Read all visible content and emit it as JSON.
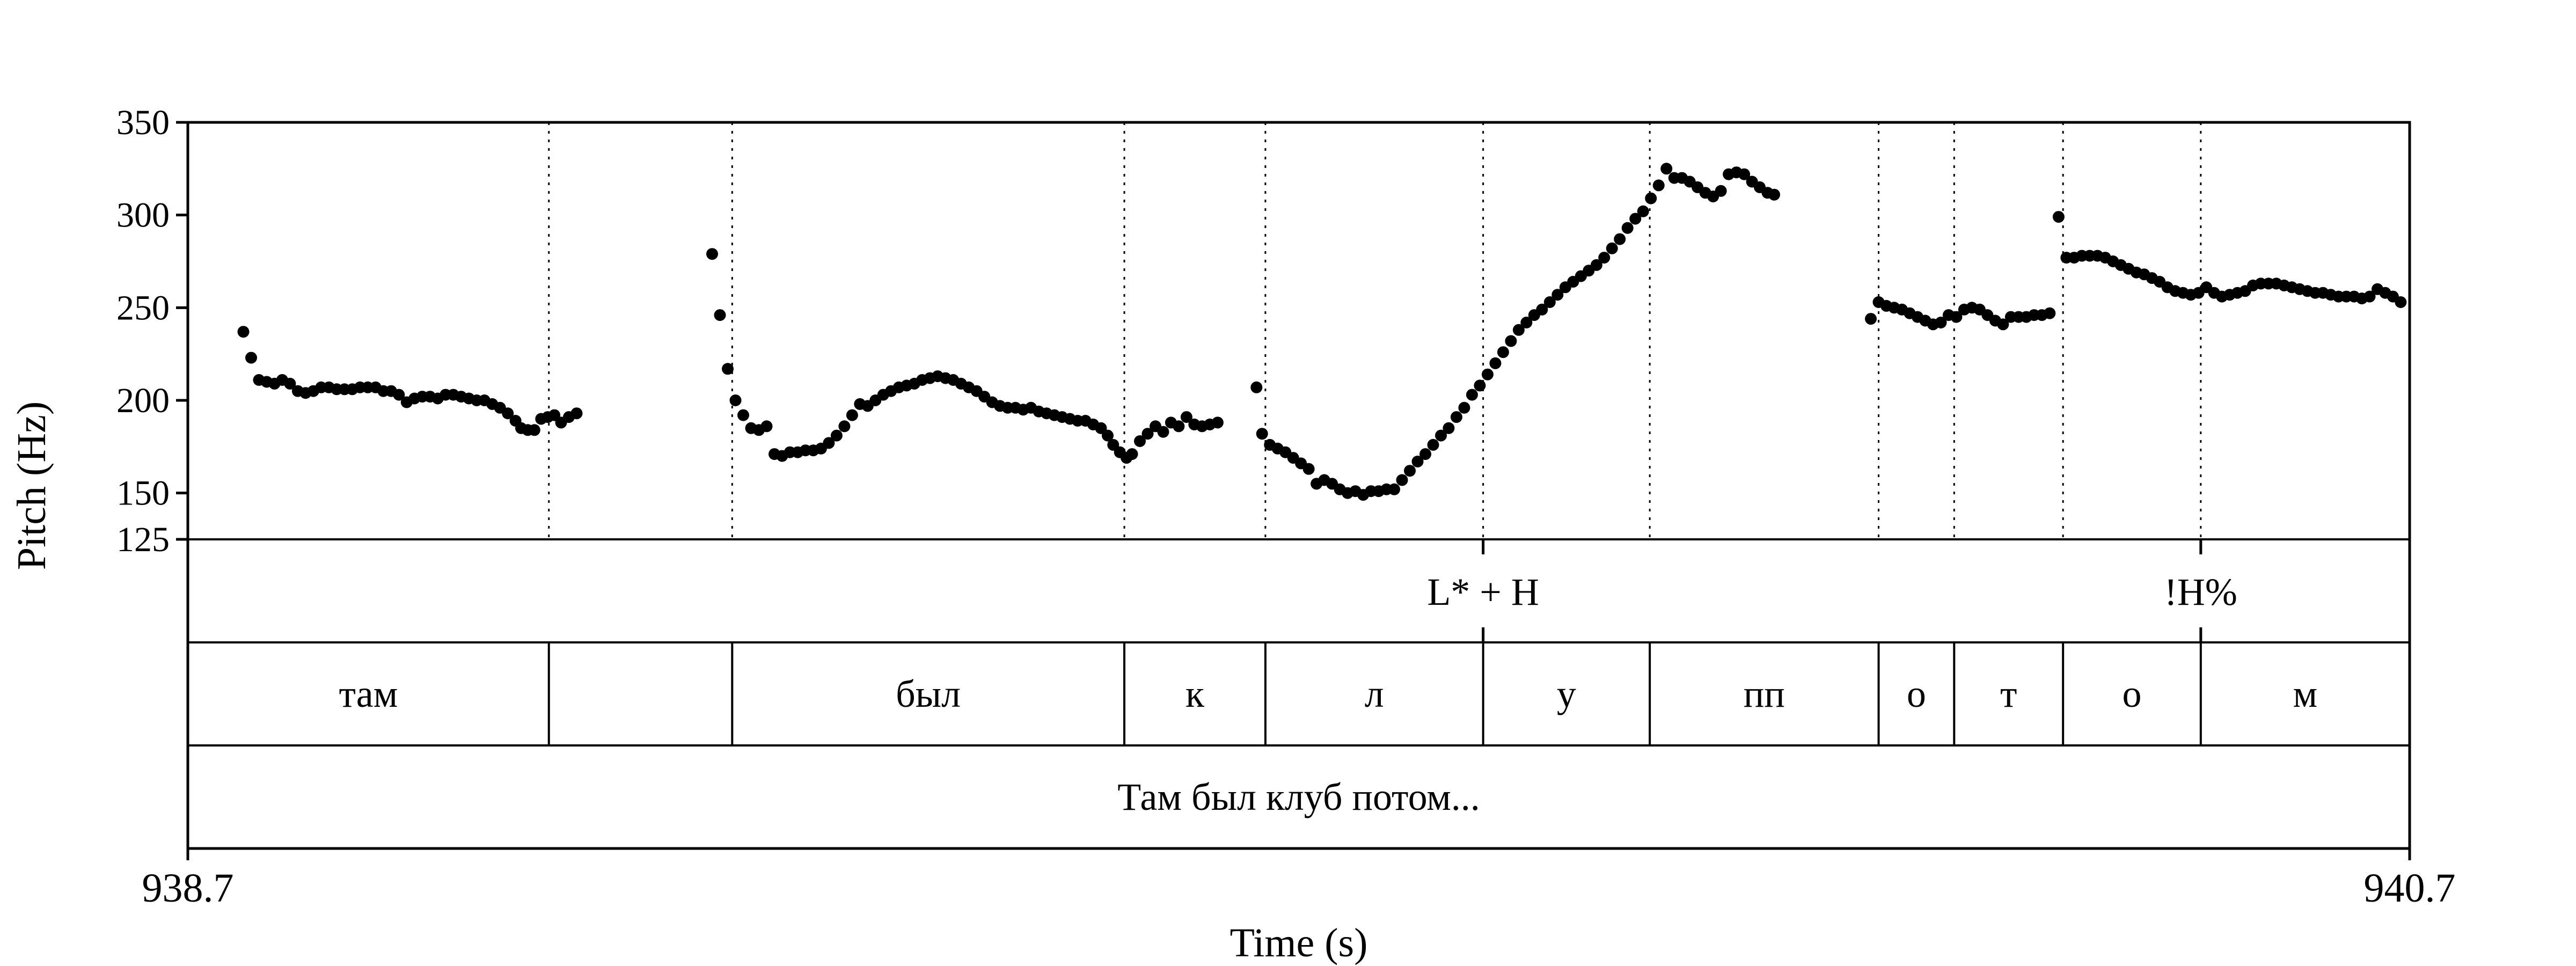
{
  "chart_data": {
    "type": "scatter",
    "xlabel": "Time (s)",
    "ylabel": "Pitch (Hz)",
    "xlim": [
      938.7,
      940.7
    ],
    "ylim": [
      125,
      350
    ],
    "xtick_labels": [
      "938.7",
      "940.7"
    ],
    "yticks": [
      {
        "value": 125,
        "label": "125"
      },
      {
        "value": 150,
        "label": "150"
      },
      {
        "value": 200,
        "label": "200"
      },
      {
        "value": 250,
        "label": "250"
      },
      {
        "value": 300,
        "label": "300"
      },
      {
        "value": 350,
        "label": "350"
      }
    ],
    "grid": false,
    "marker_color": "#000000",
    "boundaries": [
      939.025,
      939.19,
      939.543,
      939.67,
      939.866,
      940.016,
      940.222,
      940.29,
      940.388,
      940.512
    ],
    "tiers": {
      "tones": [
        {
          "time": 939.866,
          "label": "L* + H"
        },
        {
          "time": 940.512,
          "label": "!H%"
        }
      ],
      "segments": [
        {
          "start": 938.7,
          "end": 939.025,
          "label": "там"
        },
        {
          "start": 939.025,
          "end": 939.19,
          "label": ""
        },
        {
          "start": 939.19,
          "end": 939.543,
          "label": "был"
        },
        {
          "start": 939.543,
          "end": 939.67,
          "label": "к"
        },
        {
          "start": 939.67,
          "end": 939.866,
          "label": "л"
        },
        {
          "start": 939.866,
          "end": 940.016,
          "label": "у"
        },
        {
          "start": 940.016,
          "end": 940.222,
          "label": "пп"
        },
        {
          "start": 940.222,
          "end": 940.29,
          "label": "о"
        },
        {
          "start": 940.29,
          "end": 940.388,
          "label": "т"
        },
        {
          "start": 940.388,
          "end": 940.512,
          "label": "о"
        },
        {
          "start": 940.512,
          "end": 940.7,
          "label": "м"
        }
      ],
      "sentence": "Там был клуб потом..."
    },
    "series": [
      {
        "segments": [
          [
            [
              938.75,
              237
            ],
            [
              938.757,
              223
            ],
            [
              938.764,
              211
            ],
            [
              938.771,
              210
            ],
            [
              938.778,
              209
            ],
            [
              938.785,
              211
            ],
            [
              938.792,
              209
            ],
            [
              938.799,
              205
            ],
            [
              938.806,
              204
            ],
            [
              938.813,
              205
            ],
            [
              938.82,
              207
            ],
            [
              938.827,
              207
            ],
            [
              938.834,
              206
            ],
            [
              938.841,
              206
            ],
            [
              938.848,
              206
            ],
            [
              938.855,
              207
            ],
            [
              938.862,
              207
            ],
            [
              938.869,
              207
            ],
            [
              938.876,
              205
            ],
            [
              938.883,
              205
            ],
            [
              938.89,
              203
            ],
            [
              938.897,
              199
            ],
            [
              938.904,
              201
            ],
            [
              938.911,
              202
            ],
            [
              938.918,
              202
            ],
            [
              938.925,
              201
            ],
            [
              938.932,
              203
            ],
            [
              938.939,
              203
            ],
            [
              938.946,
              202
            ],
            [
              938.953,
              201
            ],
            [
              938.96,
              200
            ],
            [
              938.967,
              200
            ],
            [
              938.974,
              198
            ],
            [
              938.981,
              196
            ],
            [
              938.988,
              193
            ],
            [
              938.995,
              189
            ],
            [
              939.0,
              185
            ],
            [
              939.006,
              184
            ],
            [
              939.012,
              184
            ],
            [
              939.018,
              190
            ],
            [
              939.024,
              191
            ],
            [
              939.03,
              192
            ],
            [
              939.036,
              188
            ],
            [
              939.043,
              191
            ],
            [
              939.05,
              193
            ]
          ],
          [
            [
              939.172,
              279
            ],
            [
              939.179,
              246
            ],
            [
              939.186,
              217
            ],
            [
              939.193,
              200
            ],
            [
              939.2,
              192
            ],
            [
              939.207,
              185
            ],
            [
              939.214,
              184
            ],
            [
              939.221,
              186
            ],
            [
              939.228,
              171
            ],
            [
              939.235,
              170
            ],
            [
              939.242,
              172
            ],
            [
              939.249,
              172
            ],
            [
              939.256,
              173
            ],
            [
              939.263,
              173
            ],
            [
              939.27,
              174
            ],
            [
              939.277,
              177
            ],
            [
              939.284,
              181
            ],
            [
              939.291,
              186
            ],
            [
              939.298,
              192
            ],
            [
              939.305,
              198
            ],
            [
              939.312,
              197
            ],
            [
              939.319,
              200
            ],
            [
              939.326,
              203
            ],
            [
              939.333,
              205
            ],
            [
              939.34,
              207
            ],
            [
              939.347,
              208
            ],
            [
              939.354,
              209
            ],
            [
              939.361,
              211
            ],
            [
              939.368,
              212
            ],
            [
              939.375,
              213
            ],
            [
              939.382,
              212
            ],
            [
              939.389,
              211
            ],
            [
              939.396,
              209
            ],
            [
              939.403,
              207
            ],
            [
              939.41,
              205
            ],
            [
              939.417,
              202
            ],
            [
              939.424,
              199
            ],
            [
              939.431,
              197
            ],
            [
              939.438,
              196
            ],
            [
              939.445,
              196
            ],
            [
              939.452,
              195
            ],
            [
              939.459,
              196
            ],
            [
              939.466,
              194
            ],
            [
              939.473,
              193
            ],
            [
              939.48,
              192
            ],
            [
              939.487,
              191
            ],
            [
              939.494,
              190
            ],
            [
              939.501,
              189
            ],
            [
              939.508,
              189
            ],
            [
              939.515,
              187
            ],
            [
              939.522,
              185
            ],
            [
              939.528,
              181
            ],
            [
              939.533,
              176
            ],
            [
              939.539,
              172
            ],
            [
              939.545,
              169
            ],
            [
              939.55,
              171
            ],
            [
              939.557,
              178
            ],
            [
              939.564,
              182
            ],
            [
              939.571,
              186
            ],
            [
              939.578,
              183
            ],
            [
              939.585,
              188
            ],
            [
              939.592,
              186
            ],
            [
              939.599,
              191
            ],
            [
              939.606,
              187
            ],
            [
              939.613,
              186
            ],
            [
              939.62,
              187
            ],
            [
              939.627,
              188
            ]
          ],
          [
            [
              939.662,
              207
            ],
            [
              939.667,
              182
            ],
            [
              939.674,
              176
            ],
            [
              939.681,
              174
            ],
            [
              939.688,
              172
            ],
            [
              939.695,
              169
            ],
            [
              939.702,
              166
            ],
            [
              939.709,
              163
            ],
            [
              939.716,
              155
            ],
            [
              939.723,
              157
            ],
            [
              939.73,
              155
            ],
            [
              939.737,
              152
            ],
            [
              939.744,
              150
            ],
            [
              939.751,
              151
            ],
            [
              939.758,
              149
            ],
            [
              939.765,
              151
            ],
            [
              939.772,
              151
            ],
            [
              939.779,
              152
            ],
            [
              939.786,
              152
            ],
            [
              939.793,
              157
            ],
            [
              939.8,
              162
            ],
            [
              939.807,
              167
            ],
            [
              939.814,
              171
            ],
            [
              939.821,
              176
            ],
            [
              939.828,
              181
            ],
            [
              939.835,
              185
            ],
            [
              939.842,
              191
            ],
            [
              939.849,
              196
            ],
            [
              939.856,
              203
            ],
            [
              939.863,
              208
            ],
            [
              939.87,
              214
            ],
            [
              939.877,
              220
            ],
            [
              939.884,
              226
            ],
            [
              939.891,
              232
            ],
            [
              939.898,
              238
            ],
            [
              939.905,
              242
            ],
            [
              939.912,
              246
            ],
            [
              939.919,
              249
            ],
            [
              939.926,
              253
            ],
            [
              939.933,
              257
            ],
            [
              939.94,
              261
            ],
            [
              939.947,
              264
            ],
            [
              939.954,
              267
            ],
            [
              939.961,
              270
            ],
            [
              939.968,
              273
            ],
            [
              939.975,
              277
            ],
            [
              939.982,
              282
            ],
            [
              939.989,
              287
            ],
            [
              939.996,
              293
            ],
            [
              940.003,
              298
            ],
            [
              940.01,
              302
            ],
            [
              940.017,
              309
            ],
            [
              940.024,
              316
            ],
            [
              940.031,
              325
            ],
            [
              940.038,
              320
            ],
            [
              940.045,
              320
            ],
            [
              940.052,
              318
            ],
            [
              940.059,
              315
            ],
            [
              940.066,
              312
            ],
            [
              940.073,
              310
            ],
            [
              940.08,
              313
            ],
            [
              940.087,
              322
            ],
            [
              940.094,
              323
            ],
            [
              940.101,
              322
            ],
            [
              940.108,
              318
            ],
            [
              940.115,
              315
            ],
            [
              940.122,
              312
            ],
            [
              940.128,
              311
            ]
          ],
          [
            [
              940.215,
              244
            ],
            [
              940.222,
              253
            ],
            [
              940.229,
              251
            ],
            [
              940.236,
              250
            ],
            [
              940.243,
              249
            ],
            [
              940.25,
              247
            ],
            [
              940.257,
              245
            ],
            [
              940.264,
              243
            ],
            [
              940.271,
              241
            ],
            [
              940.278,
              242
            ],
            [
              940.285,
              246
            ],
            [
              940.292,
              245
            ],
            [
              940.299,
              249
            ],
            [
              940.306,
              250
            ],
            [
              940.313,
              249
            ],
            [
              940.32,
              246
            ],
            [
              940.327,
              243
            ],
            [
              940.334,
              241
            ],
            [
              940.341,
              245
            ],
            [
              940.348,
              245
            ],
            [
              940.355,
              245
            ],
            [
              940.362,
              246
            ],
            [
              940.369,
              246
            ],
            [
              940.376,
              247
            ]
          ],
          [
            [
              940.384,
              299
            ],
            [
              940.391,
              277
            ],
            [
              940.398,
              277
            ],
            [
              940.405,
              278
            ],
            [
              940.412,
              278
            ],
            [
              940.419,
              278
            ],
            [
              940.426,
              277
            ],
            [
              940.433,
              275
            ],
            [
              940.44,
              273
            ],
            [
              940.447,
              271
            ],
            [
              940.454,
              269
            ],
            [
              940.461,
              268
            ],
            [
              940.468,
              266
            ],
            [
              940.475,
              264
            ],
            [
              940.482,
              261
            ],
            [
              940.489,
              259
            ],
            [
              940.496,
              258
            ],
            [
              940.503,
              257
            ],
            [
              940.51,
              258
            ],
            [
              940.517,
              261
            ],
            [
              940.524,
              258
            ],
            [
              940.531,
              256
            ],
            [
              940.538,
              257
            ],
            [
              940.545,
              258
            ],
            [
              940.552,
              259
            ],
            [
              940.559,
              262
            ],
            [
              940.566,
              263
            ],
            [
              940.573,
              263
            ],
            [
              940.58,
              263
            ],
            [
              940.587,
              262
            ],
            [
              940.594,
              261
            ],
            [
              940.601,
              260
            ],
            [
              940.608,
              259
            ],
            [
              940.615,
              258
            ],
            [
              940.622,
              258
            ],
            [
              940.629,
              257
            ],
            [
              940.636,
              256
            ],
            [
              940.643,
              256
            ],
            [
              940.65,
              256
            ],
            [
              940.657,
              255
            ],
            [
              940.664,
              256
            ],
            [
              940.671,
              260
            ],
            [
              940.678,
              258
            ],
            [
              940.685,
              256
            ],
            [
              940.692,
              253
            ]
          ]
        ]
      }
    ]
  }
}
